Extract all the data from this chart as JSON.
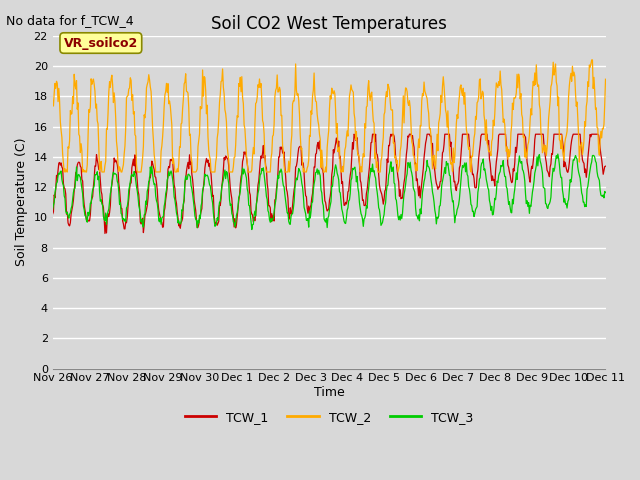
{
  "title": "Soil CO2 West Temperatures",
  "no_data_text": "No data for f_TCW_4",
  "ylabel": "Soil Temperature (C)",
  "xlabel": "Time",
  "annotation_text": "VR_soilco2",
  "ylim": [
    0,
    22
  ],
  "yticks": [
    0,
    2,
    4,
    6,
    8,
    10,
    12,
    14,
    16,
    18,
    20,
    22
  ],
  "xtick_labels": [
    "Nov 26",
    "Nov 27",
    "Nov 28",
    "Nov 29",
    "Nov 30",
    "Dec 1",
    "Dec 2",
    "Dec 3",
    "Dec 4",
    "Dec 5",
    "Dec 6",
    "Dec 7",
    "Dec 8",
    "Dec 9",
    "Dec 10",
    "Dec 11"
  ],
  "background_color": "#d8d8d8",
  "plot_bg_color": "#d8d8d8",
  "grid_color": "#ffffff",
  "line1_color": "#cc0000",
  "line2_color": "#ffaa00",
  "line3_color": "#00cc00",
  "legend_labels": [
    "TCW_1",
    "TCW_2",
    "TCW_3"
  ],
  "title_fontsize": 12,
  "axis_fontsize": 9,
  "tick_fontsize": 8,
  "nodata_fontsize": 9,
  "annot_fontsize": 9
}
